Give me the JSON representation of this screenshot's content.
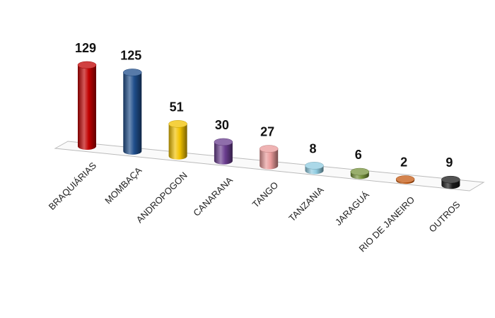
{
  "chart_data": {
    "type": "bar3d",
    "categories": [
      "BRAQUIÁRIAS",
      "MOMBAÇA",
      "ANDROPOGON",
      "CANARANA",
      "TANGO",
      "TANZANIA",
      "JARAGUÁ",
      "RIO DE JANEIRO",
      "OUTROS"
    ],
    "values": [
      129,
      125,
      51,
      30,
      27,
      8,
      6,
      2,
      9
    ],
    "colors": [
      "#c00000",
      "#1f4e8c",
      "#f2c200",
      "#6a3d8f",
      "#e99a9a",
      "#8fcbe0",
      "#77933c",
      "#c55a11",
      "#1a1a1a"
    ]
  }
}
